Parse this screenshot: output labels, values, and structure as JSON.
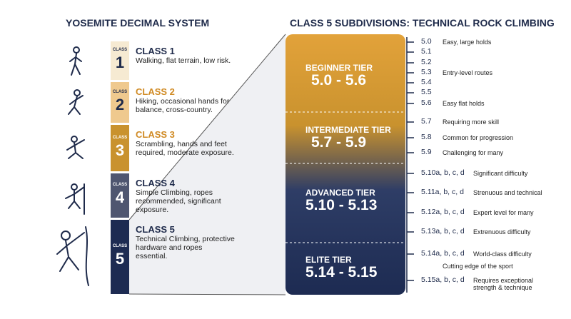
{
  "left": {
    "title": "YOSEMITE DECIMAL SYSTEM",
    "classes": [
      {
        "badge": "CLASS",
        "number": "1",
        "title": "CLASS 1",
        "description": "Walking, flat terrain, low risk."
      },
      {
        "badge": "CLASS",
        "number": "2",
        "title": "CLASS 2",
        "description": "Hiking, occasional hands for balance, cross-country."
      },
      {
        "badge": "CLASS",
        "number": "3",
        "title": "CLASS 3",
        "description": "Scrambling, hands and feet required, moderate exposure."
      },
      {
        "badge": "CLASS",
        "number": "4",
        "title": "CLASS 4",
        "description": "Simple Climbing, ropes recommended, significant exposure."
      },
      {
        "badge": "CLASS",
        "number": "5",
        "title": "CLASS 5",
        "description": "Technical Climbing, protective hardware and ropes essential."
      }
    ]
  },
  "right": {
    "title": "CLASS 5 SUBDIVISIONS: TECHNICAL ROCK CLIMBING",
    "tiers": [
      {
        "name": "BEGINNER TIER",
        "range": "5.0 - 5.6"
      },
      {
        "name": "INTERMEDIATE TIER",
        "range": "5.7 - 5.9"
      },
      {
        "name": "ADVANCED TIER",
        "range": "5.10 - 5.13"
      },
      {
        "name": "ELITE TIER",
        "range": "5.14 - 5.15"
      }
    ],
    "grades": [
      {
        "grade": "5.0",
        "note": "Easy, large holds"
      },
      {
        "grade": "5.1"
      },
      {
        "grade": "5.2"
      },
      {
        "grade": "5.3",
        "note": "Entry-level routes"
      },
      {
        "grade": "5.4"
      },
      {
        "grade": "5.5"
      },
      {
        "grade": "5.6",
        "note": "Easy flat holds"
      },
      {
        "grade": "5.7",
        "note": "Requiring more skill"
      },
      {
        "grade": "5.8",
        "note": "Common for progression"
      },
      {
        "grade": "5.9",
        "note": "Challenging for many"
      },
      {
        "grade": "5.10a, b, c, d",
        "note": "Significant difficulty"
      },
      {
        "grade": "5.11a, b, c, d",
        "note": "Strenuous and technical"
      },
      {
        "grade": "5.12a, b, c, d",
        "note": "Expert level for many"
      },
      {
        "grade": "5.13a, b, c, d",
        "note": "Extrenuous difficulty"
      },
      {
        "grade": "5.14a, b, c, d",
        "note": "World-class difficulty"
      },
      {
        "note": "Cutting edge of the sport"
      },
      {
        "grade": "5.15a, b, c, d",
        "note": "Requires exceptional strength & technique"
      }
    ]
  }
}
